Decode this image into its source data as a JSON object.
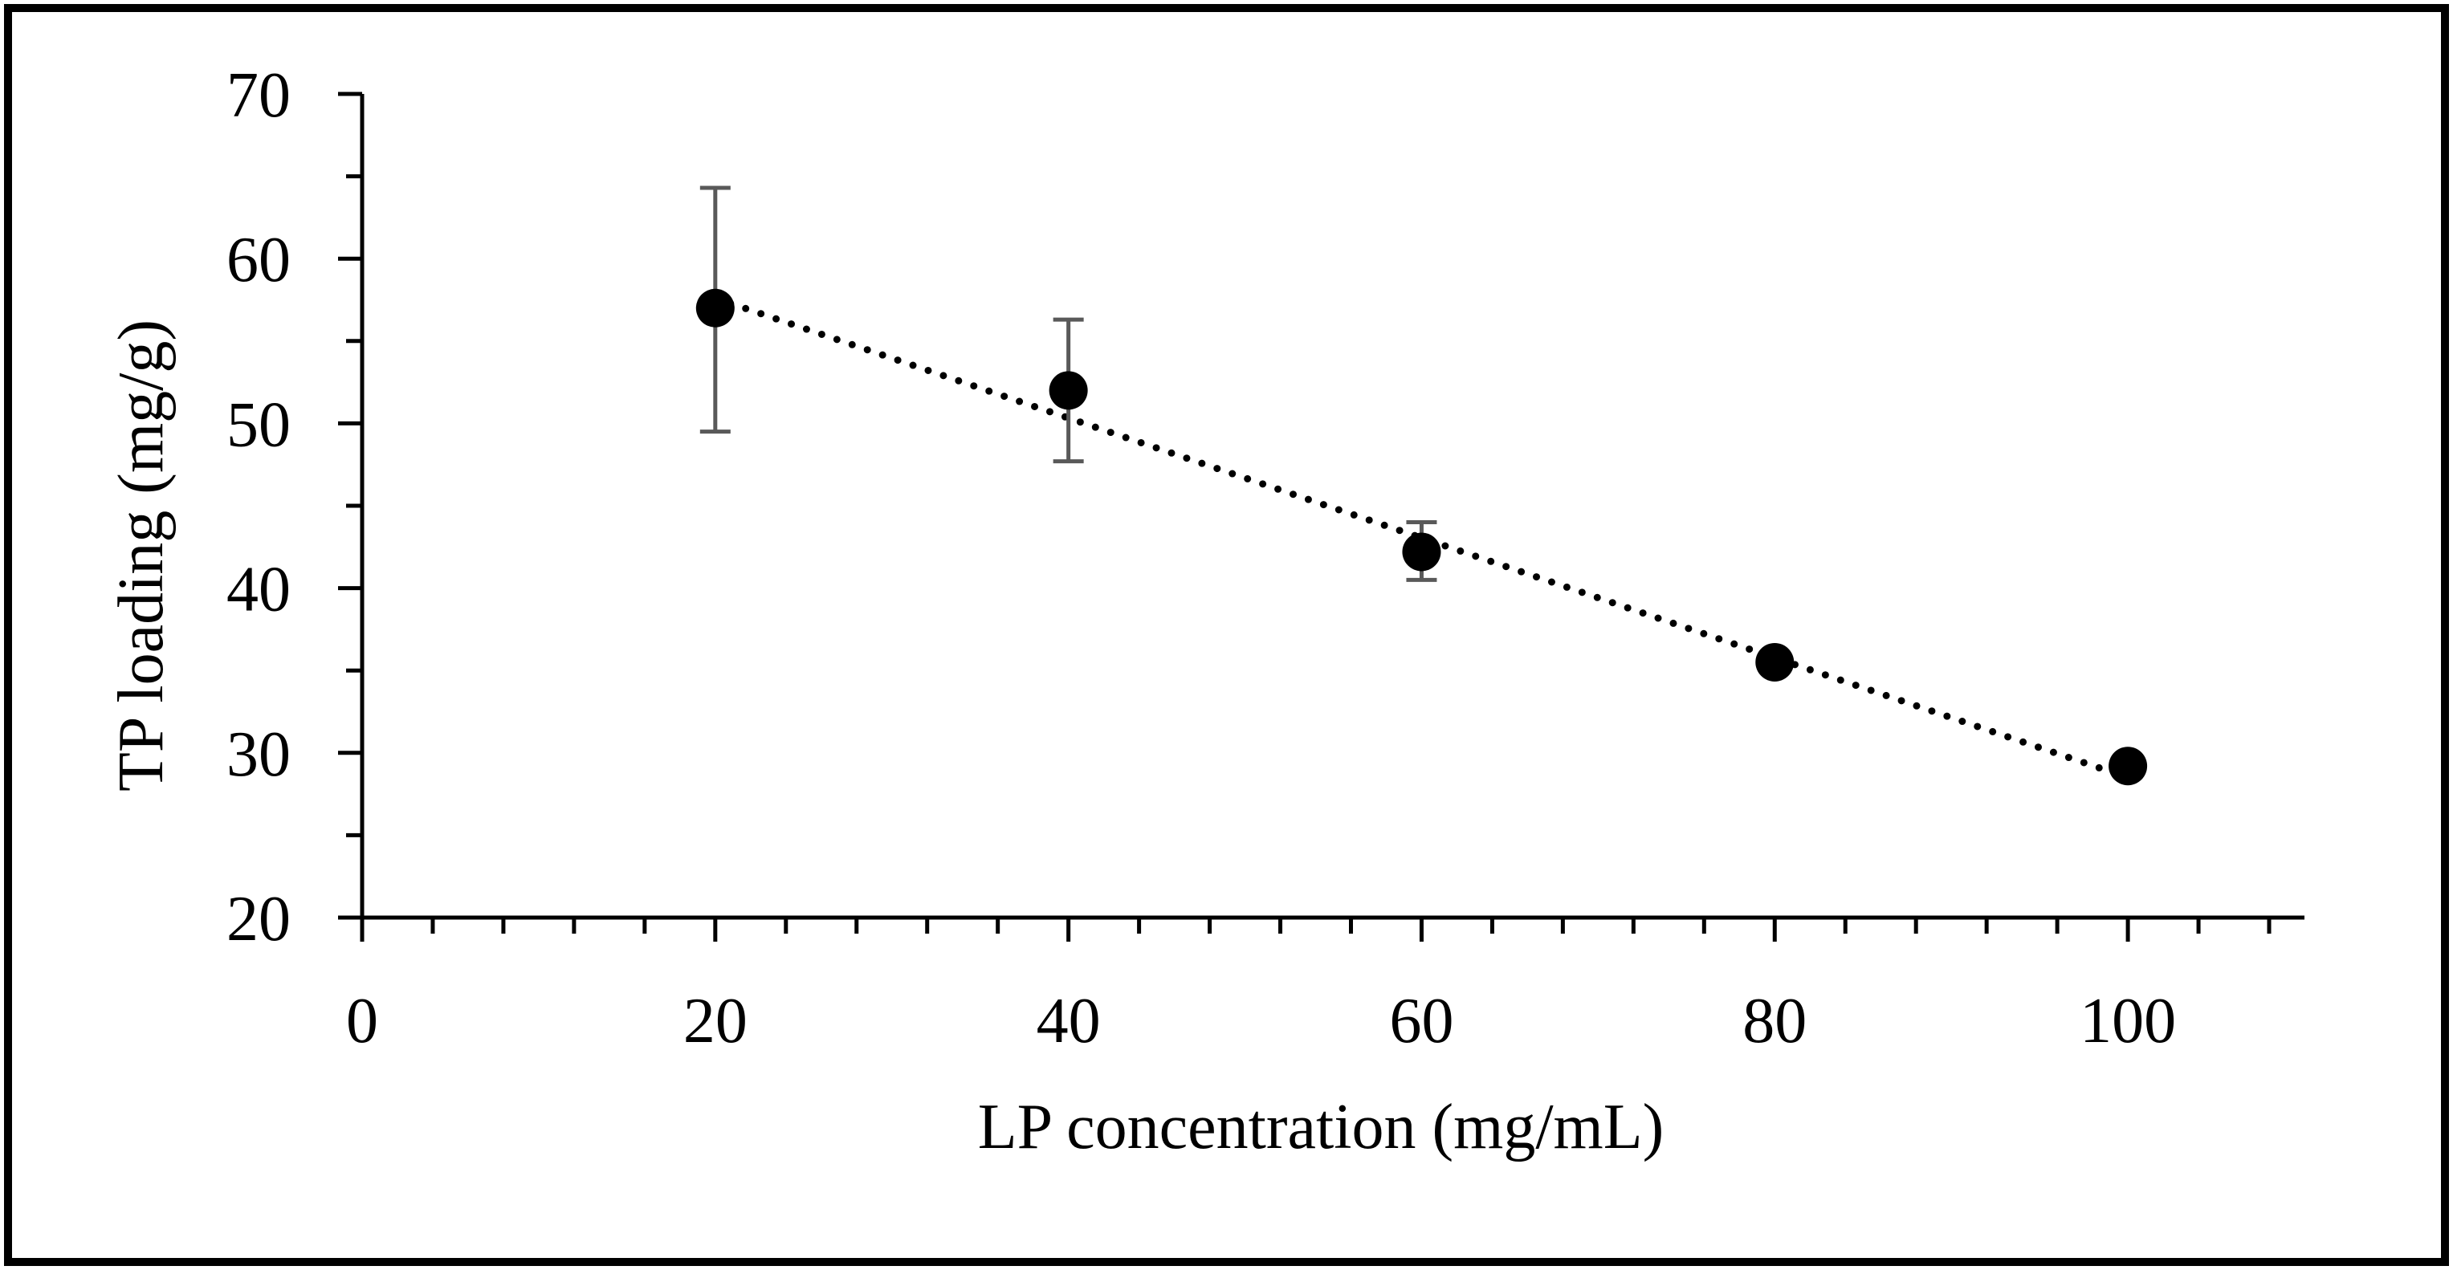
{
  "chart_data": {
    "type": "scatter",
    "title": "",
    "xlabel": "LP concentration (mg/mL)",
    "ylabel": "TP loading (mg/g)",
    "xlim": [
      0,
      110
    ],
    "ylim": [
      20,
      70
    ],
    "x_ticks": [
      0,
      20,
      40,
      60,
      80,
      100
    ],
    "x_tick_labels": [
      "0",
      "20",
      "40",
      "60",
      "80",
      "100"
    ],
    "x_minor_step": 4,
    "y_ticks": [
      20,
      30,
      40,
      50,
      60,
      70
    ],
    "y_tick_labels": [
      "20",
      "30",
      "40",
      "50",
      "60",
      "70"
    ],
    "y_minor_step": 5,
    "grid": false,
    "legend": "none",
    "series": [
      {
        "name": "TP loading",
        "x": [
          20,
          40,
          60,
          80,
          100
        ],
        "y": [
          57.0,
          52.0,
          42.2,
          35.5,
          29.2
        ],
        "error_low": [
          49.5,
          47.7,
          40.5,
          null,
          null
        ],
        "error_high": [
          64.3,
          56.3,
          44.0,
          null,
          null
        ]
      }
    ],
    "trendline": {
      "type": "linear",
      "style": "dotted",
      "x_start": 20,
      "y_start": 57.6,
      "x_end": 100,
      "y_end": 28.5
    },
    "colors": {
      "marker": "#000000",
      "error_bar": "#595959",
      "trendline": "#000000",
      "axis": "#000000",
      "frame": "#000000"
    }
  }
}
